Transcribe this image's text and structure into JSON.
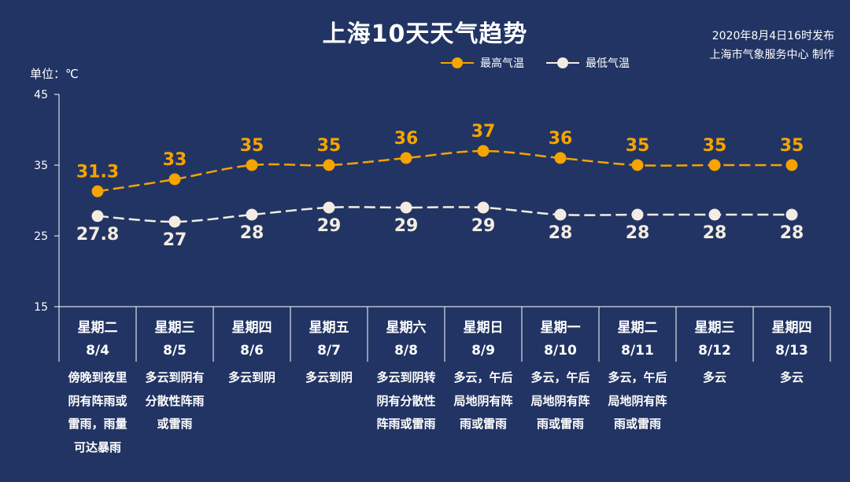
{
  "title": "上海10天天气趋势",
  "meta": {
    "published": "2020年8月4日16时发布",
    "producer": "上海市气象服务中心 制作"
  },
  "unit_label": "单位：℃",
  "colors": {
    "background": "#223463",
    "high": "#f5a400",
    "low": "#f3ece2",
    "axis": "#ffffff"
  },
  "legend": {
    "high": "最高气温",
    "low": "最低气温"
  },
  "days": [
    {
      "weekday": "星期二",
      "date": "8/4",
      "weather": [
        "傍晚到夜里",
        "阴有阵雨或",
        "雷雨，雨量",
        "可达暴雨"
      ]
    },
    {
      "weekday": "星期三",
      "date": "8/5",
      "weather": [
        "多云到阴有",
        "分散性阵雨",
        "或雷雨"
      ]
    },
    {
      "weekday": "星期四",
      "date": "8/6",
      "weather": [
        "多云到阴"
      ]
    },
    {
      "weekday": "星期五",
      "date": "8/7",
      "weather": [
        "多云到阴"
      ]
    },
    {
      "weekday": "星期六",
      "date": "8/8",
      "weather": [
        "多云到阴转",
        "阴有分散性",
        "阵雨或雷雨"
      ]
    },
    {
      "weekday": "星期日",
      "date": "8/9",
      "weather": [
        "多云，午后",
        "局地阴有阵",
        "雨或雷雨"
      ]
    },
    {
      "weekday": "星期一",
      "date": "8/10",
      "weather": [
        "多云，午后",
        "局地阴有阵",
        "雨或雷雨"
      ]
    },
    {
      "weekday": "星期二",
      "date": "8/11",
      "weather": [
        "多云，午后",
        "局地阴有阵",
        "雨或雷雨"
      ]
    },
    {
      "weekday": "星期三",
      "date": "8/12",
      "weather": [
        "多云"
      ]
    },
    {
      "weekday": "星期四",
      "date": "8/13",
      "weather": [
        "多云"
      ]
    }
  ],
  "chart_data": {
    "type": "line",
    "categories": [
      "8/4",
      "8/5",
      "8/6",
      "8/7",
      "8/8",
      "8/9",
      "8/10",
      "8/11",
      "8/12",
      "8/13"
    ],
    "series": [
      {
        "name": "最高气温",
        "values": [
          31.3,
          33,
          35,
          35,
          36,
          37,
          36,
          35,
          35,
          35
        ],
        "labels": [
          "31.3",
          "33",
          "35",
          "35",
          "36",
          "37",
          "36",
          "35",
          "35",
          "35"
        ]
      },
      {
        "name": "最低气温",
        "values": [
          27.8,
          27,
          28,
          29,
          29,
          29,
          28,
          28,
          28,
          28
        ],
        "labels": [
          "27.8",
          "27",
          "28",
          "29",
          "29",
          "29",
          "28",
          "28",
          "28",
          "28"
        ]
      }
    ],
    "ylim": [
      15,
      45
    ],
    "yticks": [
      15,
      25,
      35,
      45
    ],
    "ylabel": "单位：℃",
    "grid": false,
    "legend_position": "top-right"
  }
}
